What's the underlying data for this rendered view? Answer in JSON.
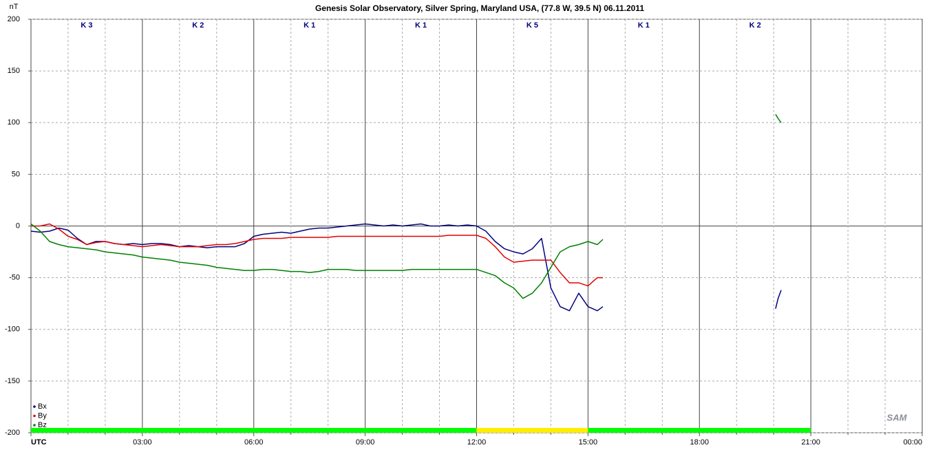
{
  "chart_data": {
    "type": "line",
    "title": "Genesis Solar Observatory, Silver Spring, Maryland USA, (77.8 W, 39.5 N)  06.11.2011",
    "ylabel": "nT",
    "logo": "SAM",
    "x": [
      0,
      0.25,
      0.5,
      0.75,
      1,
      1.25,
      1.5,
      1.75,
      2,
      2.25,
      2.5,
      2.75,
      3,
      3.25,
      3.5,
      3.75,
      4,
      4.25,
      4.5,
      4.75,
      5,
      5.25,
      5.5,
      5.75,
      6,
      6.25,
      6.5,
      6.75,
      7,
      7.25,
      7.5,
      7.75,
      8,
      8.25,
      8.5,
      8.75,
      9,
      9.25,
      9.5,
      9.75,
      10,
      10.25,
      10.5,
      10.75,
      11,
      11.25,
      11.5,
      11.75,
      12,
      12.25,
      12.5,
      12.75,
      13,
      13.25,
      13.5,
      13.75,
      14,
      14.25,
      14.5,
      14.75,
      15,
      15.25,
      15.4,
      17,
      20.05,
      20.12,
      20.2
    ],
    "series": [
      {
        "name": "Bx",
        "color": "#00007f",
        "values": [
          -5,
          -6,
          -5,
          -2,
          -4,
          -12,
          -18,
          -15,
          -15,
          -17,
          -18,
          -17,
          -18,
          -17,
          -17,
          -18,
          -20,
          -19,
          -20,
          -21,
          -20,
          -20,
          -20,
          -17,
          -10,
          -8,
          -7,
          -6,
          -7,
          -5,
          -3,
          -2,
          -2,
          -1,
          0,
          1,
          2,
          1,
          0,
          1,
          0,
          1,
          2,
          0,
          0,
          1,
          0,
          1,
          0,
          -5,
          -15,
          -22,
          -25,
          -27,
          -22,
          -12,
          -60,
          -78,
          -82,
          -65,
          -78,
          -82,
          -78,
          null,
          -80,
          -70,
          -62
        ]
      },
      {
        "name": "By",
        "color": "#e00000",
        "values": [
          0,
          0,
          2,
          -3,
          -10,
          -13,
          -18,
          -16,
          -15,
          -17,
          -18,
          -19,
          -20,
          -19,
          -18,
          -19,
          -20,
          -20,
          -20,
          -19,
          -18,
          -18,
          -17,
          -15,
          -13,
          -12,
          -12,
          -12,
          -11,
          -11,
          -11,
          -11,
          -11,
          -10,
          -10,
          -10,
          -10,
          -10,
          -10,
          -10,
          -10,
          -10,
          -10,
          -10,
          -10,
          -9,
          -9,
          -9,
          -9,
          -12,
          -20,
          -30,
          -35,
          -34,
          -33,
          -33,
          -33,
          -45,
          -55,
          -55,
          -58,
          -50,
          -50,
          null,
          null,
          null,
          null
        ]
      },
      {
        "name": "Bz",
        "color": "#007f00",
        "values": [
          2,
          -5,
          -15,
          -18,
          -20,
          -21,
          -22,
          -23,
          -25,
          -26,
          -27,
          -28,
          -30,
          -31,
          -32,
          -33,
          -35,
          -36,
          -37,
          -38,
          -40,
          -41,
          -42,
          -43,
          -43,
          -42,
          -42,
          -43,
          -44,
          -44,
          -45,
          -44,
          -42,
          -42,
          -42,
          -43,
          -43,
          -43,
          -43,
          -43,
          -43,
          -42,
          -42,
          -42,
          -42,
          -42,
          -42,
          -42,
          -42,
          -45,
          -48,
          -55,
          -60,
          -70,
          -65,
          -55,
          -40,
          -25,
          -20,
          -18,
          -15,
          -18,
          -13,
          null,
          108,
          104,
          100
        ]
      }
    ],
    "xlim": [
      0,
      24
    ],
    "xticks": [
      {
        "value": 0,
        "label": "UTC"
      },
      {
        "value": 3,
        "label": "03:00"
      },
      {
        "value": 6,
        "label": "06:00"
      },
      {
        "value": 9,
        "label": "09:00"
      },
      {
        "value": 12,
        "label": "12:00"
      },
      {
        "value": 15,
        "label": "15:00"
      },
      {
        "value": 18,
        "label": "18:00"
      },
      {
        "value": 21,
        "label": "21:00"
      },
      {
        "value": 24,
        "label": "00:00"
      }
    ],
    "xminorticks": [
      1,
      2,
      4,
      5,
      7,
      8,
      10,
      11,
      13,
      14,
      16,
      17,
      19,
      20,
      22,
      23
    ],
    "ylim": [
      -200,
      200
    ],
    "yticks": [
      -200,
      -150,
      -100,
      -50,
      0,
      50,
      100,
      150,
      200
    ],
    "grid": true,
    "legend": "bottom-left",
    "k_index": [
      "K 3",
      "K 2",
      "K 1",
      "K 1",
      "K 5",
      "K 1",
      "K 2"
    ],
    "activity_bar": [
      {
        "start": 0,
        "end": 12,
        "color": "#00ff00"
      },
      {
        "start": 12,
        "end": 15,
        "color": "#ffee00"
      },
      {
        "start": 15,
        "end": 21,
        "color": "#00ff00"
      }
    ]
  }
}
